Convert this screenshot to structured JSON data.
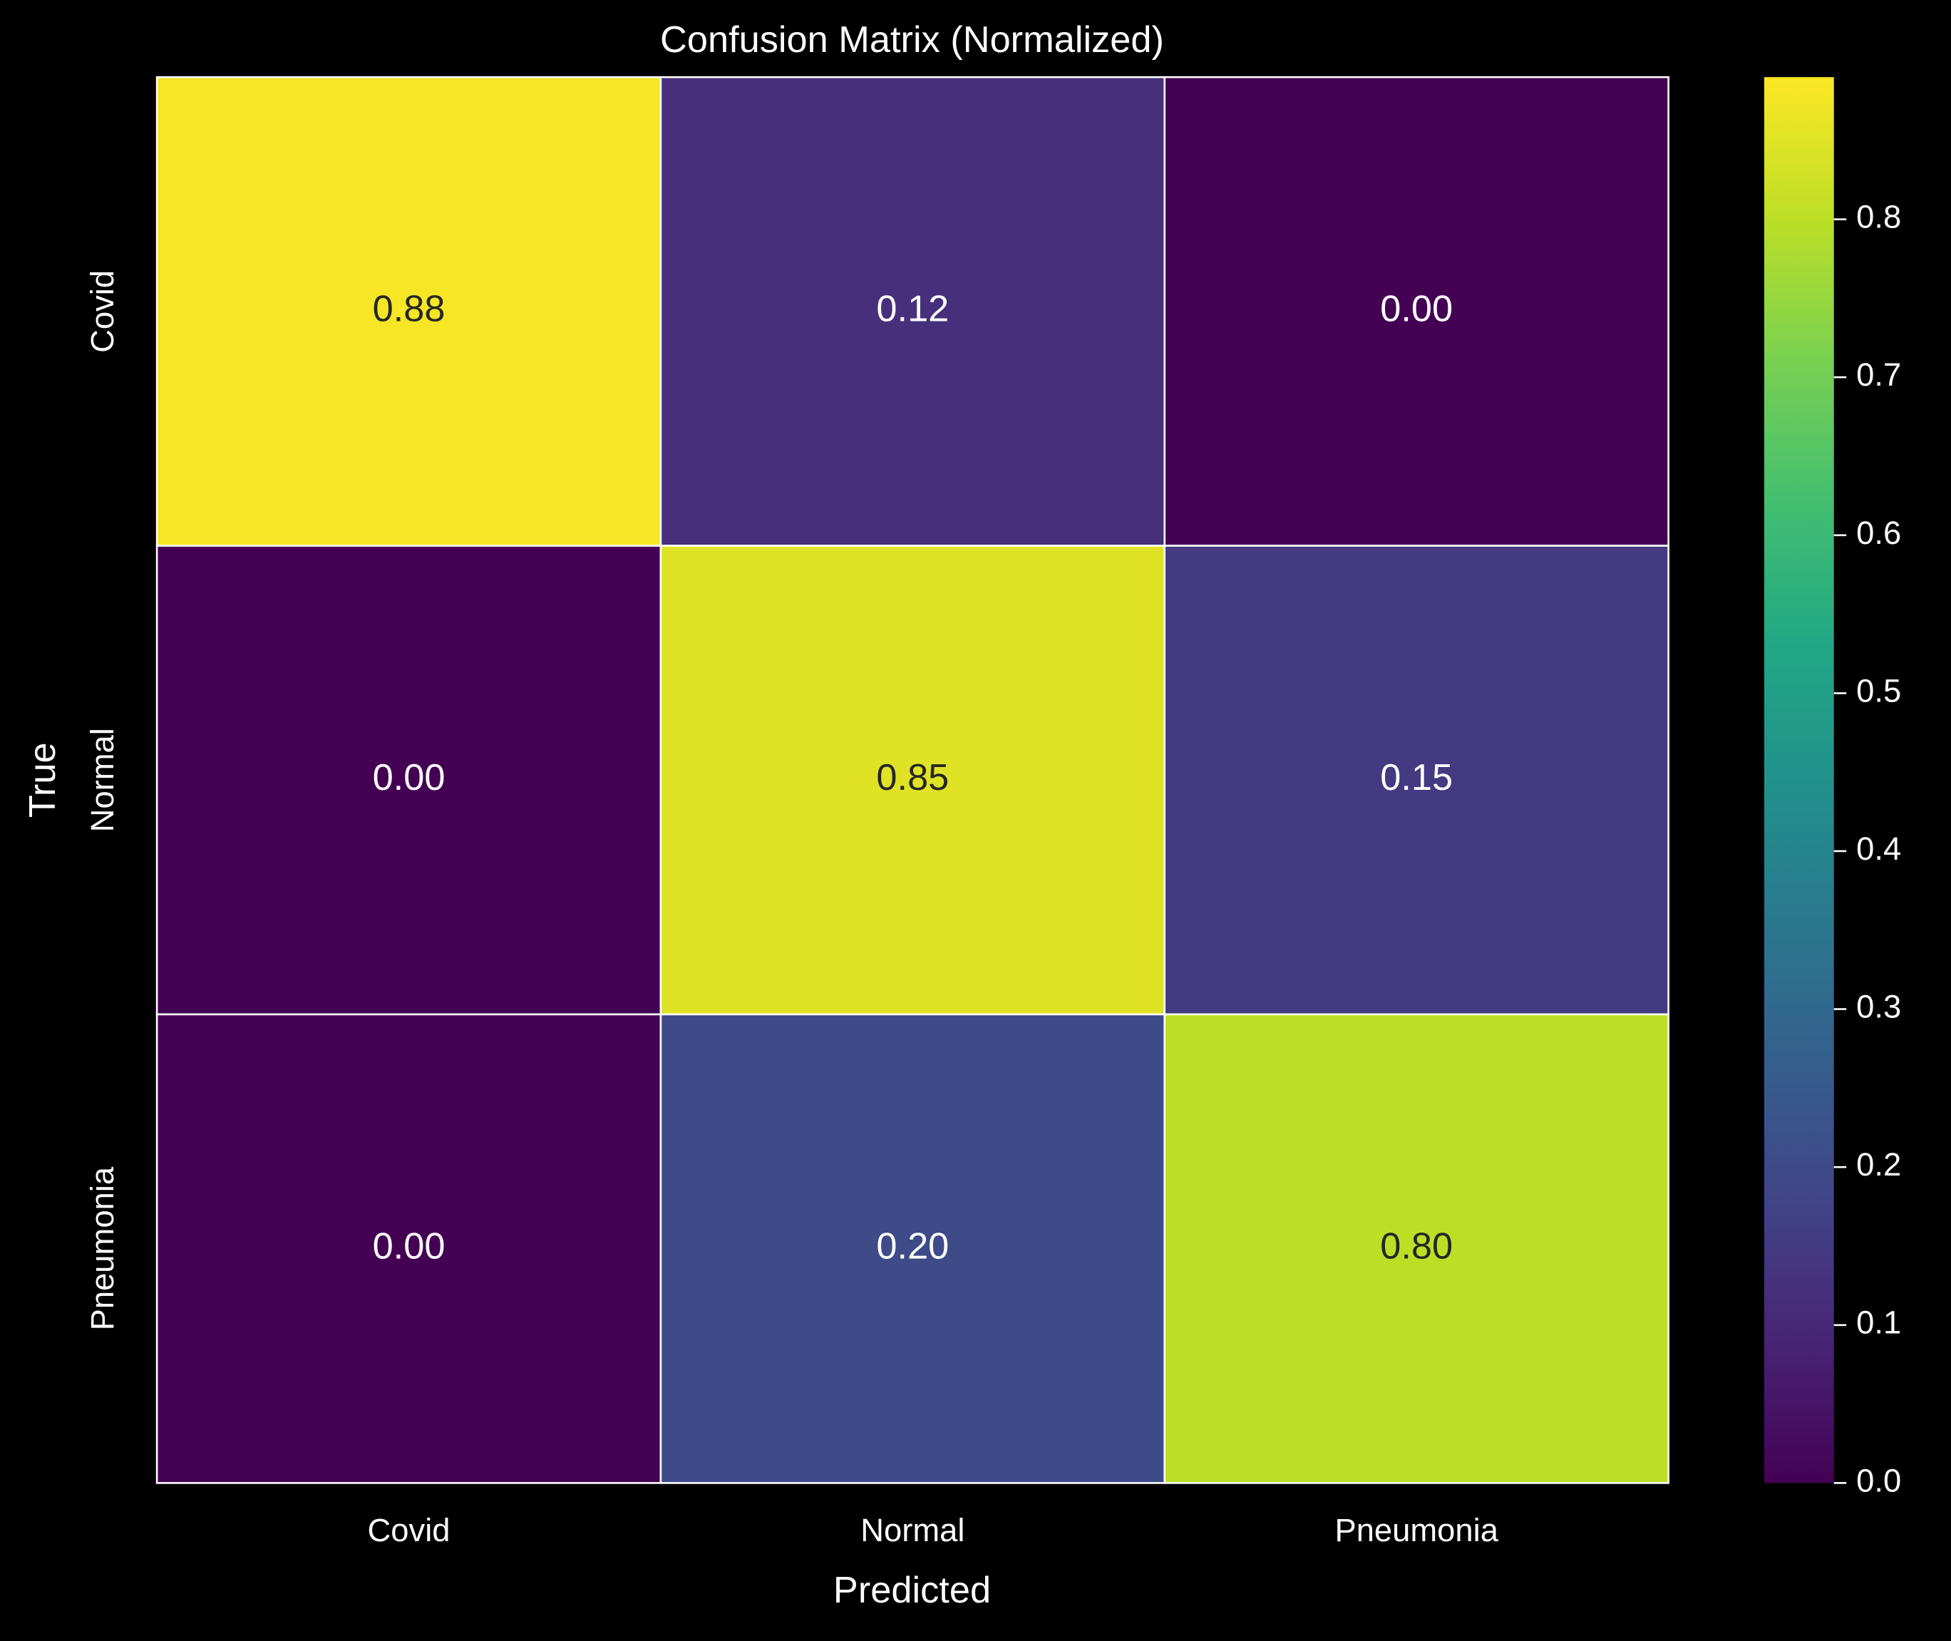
{
  "chart_data": {
    "type": "heatmap",
    "title": "Confusion Matrix (Normalized)",
    "x_label": "Predicted",
    "y_label": "True",
    "x_categories": [
      "Covid",
      "Normal",
      "Pneumonia"
    ],
    "y_categories": [
      "Covid",
      "Normal",
      "Pneumonia"
    ],
    "values": [
      [
        0.88,
        0.12,
        0.0
      ],
      [
        0.0,
        0.85,
        0.15
      ],
      [
        0.0,
        0.2,
        0.8
      ]
    ],
    "value_labels": [
      [
        "0.88",
        "0.12",
        "0.00"
      ],
      [
        "0.00",
        "0.85",
        "0.15"
      ],
      [
        "0.00",
        "0.20",
        "0.80"
      ]
    ],
    "colormap": "viridis",
    "zlim": [
      0,
      0.89
    ],
    "zticks": [
      {
        "value": 0,
        "label": "0.0"
      },
      0.1,
      0.2,
      0.3,
      0.4,
      0.5,
      0.6,
      0.7,
      0.8
    ]
  }
}
